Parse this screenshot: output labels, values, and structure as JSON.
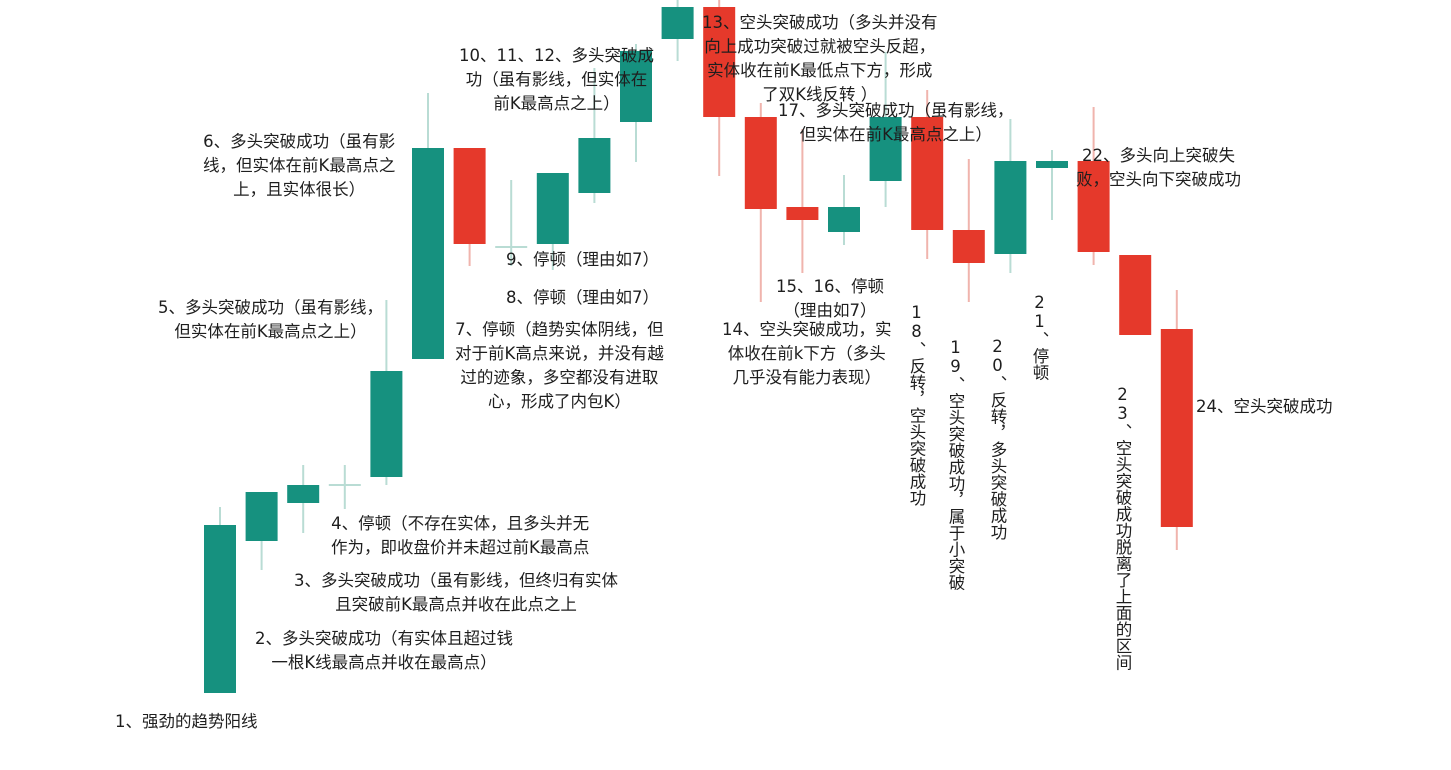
{
  "colors": {
    "bull": "#16917f",
    "bear": "#e5392b",
    "bull_wick": "#b9dcd4",
    "bear_wick": "#f0b4ad",
    "text": "#1e1e1e",
    "background": "#ffffff"
  },
  "candles": [
    {
      "id": 1,
      "dir": "bull",
      "open": 100,
      "close": 268,
      "high": 286,
      "low": 100
    },
    {
      "id": 2,
      "dir": "bull",
      "open": 252,
      "close": 301,
      "high": 301,
      "low": 223
    },
    {
      "id": 3,
      "dir": "bull",
      "open": 290,
      "close": 308,
      "high": 328,
      "low": 260
    },
    {
      "id": 4,
      "dir": "doji",
      "open": 309,
      "close": 309,
      "high": 328,
      "low": 284
    },
    {
      "id": 5,
      "dir": "bull",
      "open": 316,
      "close": 422,
      "high": 493,
      "low": 308
    },
    {
      "id": 6,
      "dir": "bull",
      "open": 434,
      "close": 645,
      "high": 700,
      "low": 434
    },
    {
      "id": 7,
      "dir": "bear",
      "open": 645,
      "close": 549,
      "high": 645,
      "low": 527
    },
    {
      "id": 8,
      "dir": "doji",
      "open": 547,
      "close": 547,
      "high": 613,
      "low": 527
    },
    {
      "id": 9,
      "dir": "bull",
      "open": 549,
      "close": 620,
      "high": 620,
      "low": 523
    },
    {
      "id": 10,
      "dir": "bull",
      "open": 600,
      "close": 655,
      "high": 725,
      "low": 590
    },
    {
      "id": 11,
      "dir": "bull",
      "open": 671,
      "close": 742,
      "high": 749,
      "low": 631
    },
    {
      "id": 12,
      "dir": "bull",
      "open": 754,
      "close": 786,
      "high": 805,
      "low": 732
    },
    {
      "id": 13,
      "dir": "bear",
      "open": 786,
      "close": 676,
      "high": 805,
      "low": 617
    },
    {
      "id": 14,
      "dir": "bear",
      "open": 676,
      "close": 584,
      "high": 690,
      "low": 491
    },
    {
      "id": 15,
      "dir": "bear",
      "open": 586,
      "close": 573,
      "high": 664,
      "low": 520
    },
    {
      "id": 16,
      "dir": "bull",
      "open": 561,
      "close": 586,
      "high": 618,
      "low": 548
    },
    {
      "id": 17,
      "dir": "bull",
      "open": 612,
      "close": 676,
      "high": 741,
      "low": 586
    },
    {
      "id": 18,
      "dir": "bear",
      "open": 676,
      "close": 563,
      "high": 703,
      "low": 534
    },
    {
      "id": 19,
      "dir": "bear",
      "open": 563,
      "close": 530,
      "high": 634,
      "low": 491
    },
    {
      "id": 20,
      "dir": "bull",
      "open": 539,
      "close": 632,
      "high": 674,
      "low": 520
    },
    {
      "id": 21,
      "dir": "bull",
      "open": 625,
      "close": 632,
      "high": 643,
      "low": 573
    },
    {
      "id": 22,
      "dir": "bear",
      "open": 632,
      "close": 541,
      "high": 686,
      "low": 528
    },
    {
      "id": 23,
      "dir": "bear",
      "open": 538,
      "close": 458,
      "high": 538,
      "low": 458
    },
    {
      "id": 24,
      "dir": "bear",
      "open": 464,
      "close": 266,
      "high": 503,
      "low": 243
    }
  ],
  "annotations": {
    "a1": "1、强劲的趋势阳线",
    "a2": "2、多头突破成功（有实体且超过钱\n一根K线最高点并收在最高点）",
    "a3": "3、多头突破成功（虽有影线，但终归有实体\n且突破前K最高点并收在此点之上",
    "a4": "4、停顿（不存在实体，且多头并无\n作为，即收盘价并未超过前K最高点",
    "a5": "5、多头突破成功（虽有影线，\n但实体在前K最高点之上）",
    "a6": "6、多头突破成功（虽有影\n线，但实体在前K最高点之\n上，且实体很长）",
    "a7": "7、停顿（趋势实体阴线，但\n对于前K高点来说，并没有越\n过的迹象，多空都没有进取\n心，形成了内包K）",
    "a8": "8、停顿（理由如7）",
    "a9": "9、停顿（理由如7）",
    "a10": "10、11、12、多头突破成\n功（虽有影线，但实体在\n前K最高点之上）",
    "a13": "13、空头突破成功（多头并没有\n向上成功突破过就被空头反超，\n实体收在前K最低点下方，形成\n了双K线反转 ）",
    "a14": "14、空头突破成功，实\n体收在前k下方（多头\n几乎没有能力表现）",
    "a15": "15、16、停顿\n（理由如7）",
    "a17": "17、多头突破成功（虽有影线，\n但实体在前K最高点之上）",
    "a18": "18、反转，空头突破成功",
    "a19": "19、空头突破成功，属于小突破",
    "a20": "20、反转，多头突破成功",
    "a21": "21、停顿",
    "a22": "22、多头向上突破失\n败，空头向下突破成功",
    "a23": "23、空头突破成功脱离了上面的区间",
    "a24": "24、空头突破成功"
  }
}
